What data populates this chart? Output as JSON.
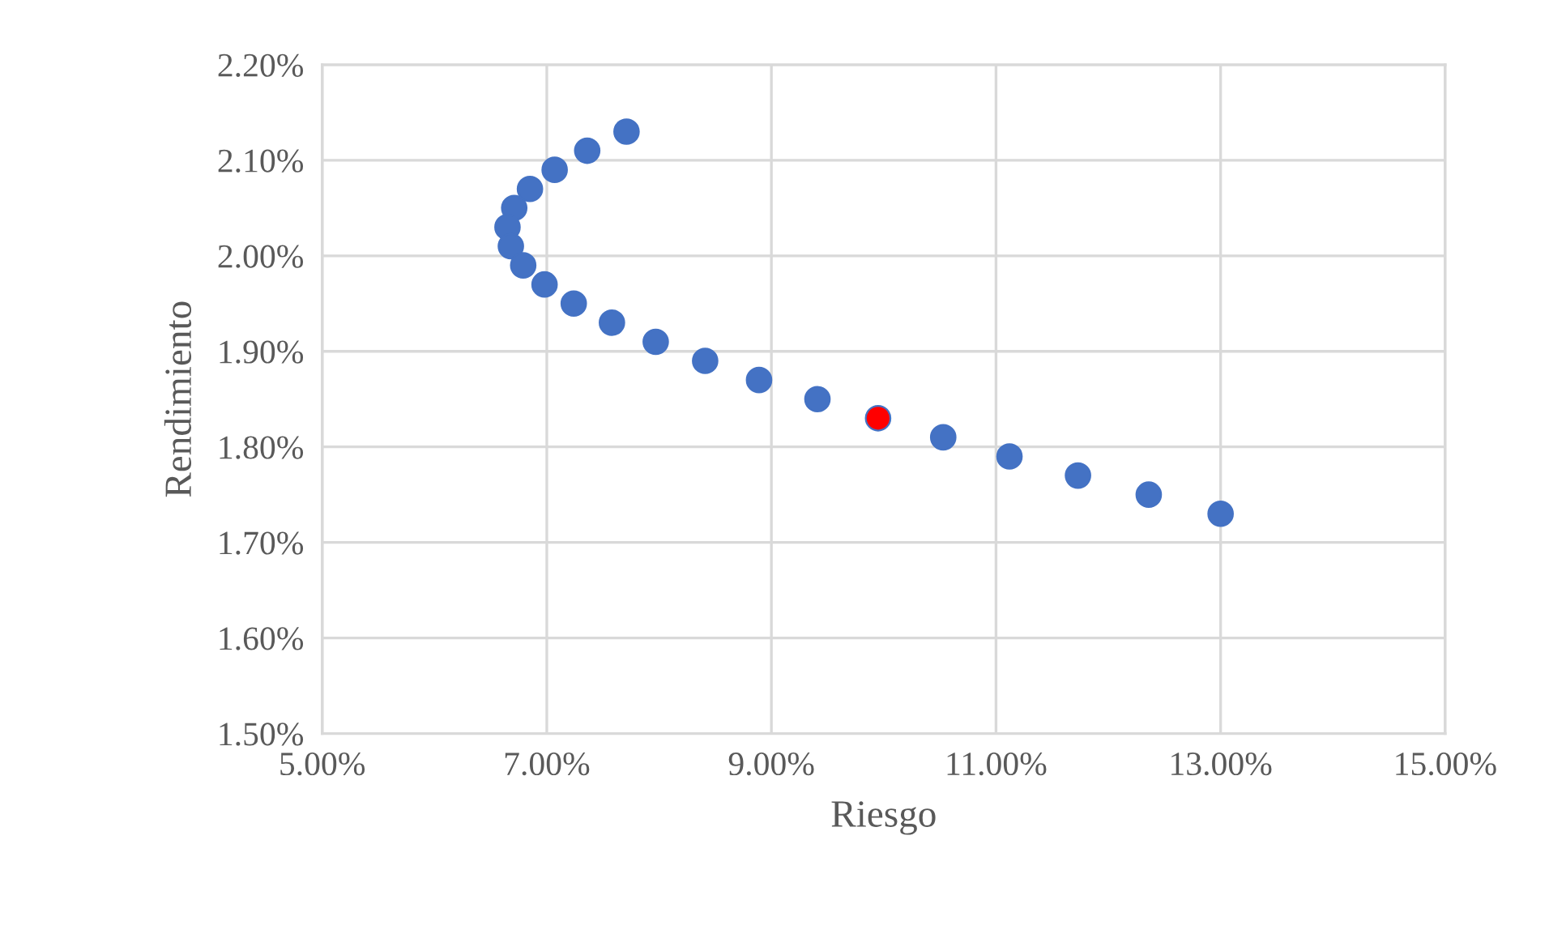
{
  "chart_data": {
    "type": "scatter",
    "xlabel": "Riesgo",
    "ylabel": "Rendimiento",
    "series": [
      {
        "color": "#4472c4",
        "x": [
          7.71,
          7.36,
          7.07,
          6.85,
          6.71,
          6.65,
          6.68,
          6.79,
          6.98,
          7.24,
          7.58,
          7.97,
          8.41,
          8.89,
          9.41,
          10.53,
          11.12,
          11.73,
          12.36,
          13.0
        ],
        "values": [
          2.13,
          2.11,
          2.09,
          2.07,
          2.05,
          2.03,
          2.01,
          1.99,
          1.97,
          1.95,
          1.93,
          1.91,
          1.89,
          1.87,
          1.85,
          1.81,
          1.79,
          1.77,
          1.75,
          1.73
        ]
      },
      {
        "color": "#ff0000",
        "x": [
          9.95
        ],
        "values": [
          1.83
        ]
      }
    ],
    "marker": "circle",
    "grid": true,
    "xlim": [
      5,
      15
    ],
    "ylim": [
      1.5,
      2.2
    ],
    "xticks": [
      {
        "value": 5,
        "label": "5.00%"
      },
      {
        "value": 7,
        "label": "7.00%"
      },
      {
        "value": 9,
        "label": "9.00%"
      },
      {
        "value": 11,
        "label": "11.00%"
      },
      {
        "value": 13,
        "label": "13.00%"
      },
      {
        "value": 15,
        "label": "15.00%"
      }
    ],
    "yticks": [
      {
        "value": 1.5,
        "label": "1.50%"
      },
      {
        "value": 1.6,
        "label": "1.60%"
      },
      {
        "value": 1.7,
        "label": "1.70%"
      },
      {
        "value": 1.8,
        "label": "1.80%"
      },
      {
        "value": 1.9,
        "label": "1.90%"
      },
      {
        "value": 2.0,
        "label": "2.00%"
      },
      {
        "value": 2.1,
        "label": "2.10%"
      },
      {
        "value": 2.2,
        "label": "2.20%"
      }
    ]
  }
}
